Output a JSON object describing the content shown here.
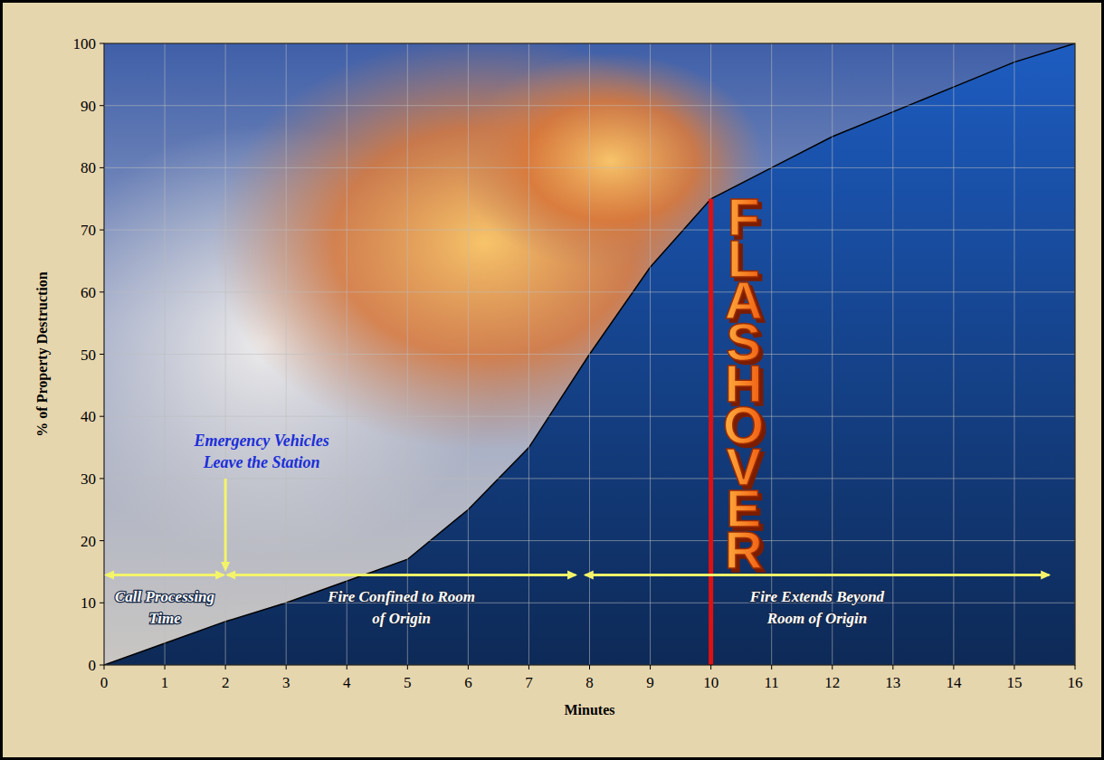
{
  "chart_data": {
    "type": "area",
    "x_label": "Minutes",
    "y_label": "% of Property Destruction",
    "x": [
      0,
      1,
      2,
      3,
      4,
      5,
      6,
      7,
      8,
      9,
      10,
      11,
      12,
      13,
      14,
      15,
      16
    ],
    "values": [
      0,
      3.5,
      7,
      10,
      13.5,
      17,
      25,
      35,
      50,
      64,
      75,
      80,
      85,
      89,
      93,
      97,
      100
    ],
    "color": "#1d5cc0",
    "xlim": [
      0,
      16
    ],
    "ylim": [
      0,
      100
    ],
    "xticks": [
      0,
      1,
      2,
      3,
      4,
      5,
      6,
      7,
      8,
      9,
      10,
      11,
      12,
      13,
      14,
      15,
      16
    ],
    "yticks": [
      0,
      10,
      20,
      30,
      40,
      50,
      60,
      70,
      80,
      90,
      100
    ],
    "grid": true,
    "callouts": [
      {
        "text": "Emergency Vehicles Leave the Station",
        "x": 2,
        "y": 30,
        "y_end": 15
      }
    ],
    "spans": [
      {
        "text": "Call Processing Time",
        "x_start": 0,
        "x_end": 2,
        "y": 14.5
      },
      {
        "text": "Fire Confined to Room of Origin",
        "x_start": 2,
        "x_end": 7.8,
        "y": 14.5
      },
      {
        "text": "Fire Extends Beyond Room of Origin",
        "x_start": 7.9,
        "x_end": 15.6,
        "y": 14.5
      }
    ],
    "vlines": [
      {
        "text": "FLASHOVER",
        "x": 10,
        "y": 75
      }
    ]
  }
}
